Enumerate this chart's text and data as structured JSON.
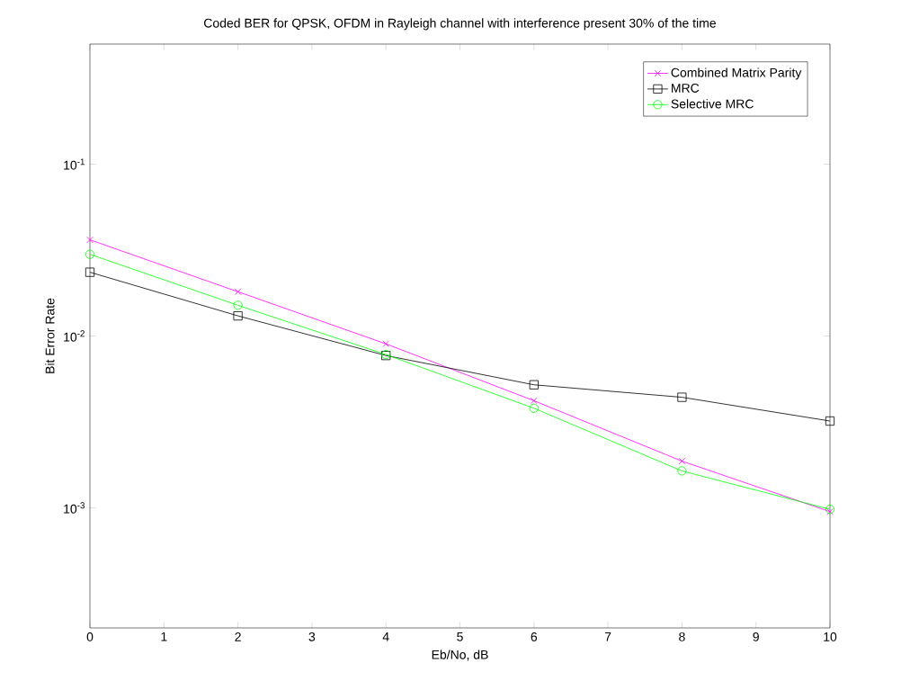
{
  "chart_data": {
    "type": "line",
    "title": "Coded BER for QPSK, OFDM in Rayleigh channel with interference present 30% of the time",
    "xlabel": "Eb/No, dB",
    "ylabel": "Bit Error Rate",
    "x": [
      0,
      2,
      4,
      6,
      8,
      10
    ],
    "series": [
      {
        "name": "Combined Matrix Parity",
        "color": "#ff00ff",
        "marker": "cross",
        "values": [
          0.0363,
          0.0181,
          0.009,
          0.0042,
          0.00187,
          0.00095
        ]
      },
      {
        "name": "MRC",
        "color": "#000000",
        "marker": "square",
        "values": [
          0.0235,
          0.0131,
          0.0077,
          0.0052,
          0.0044,
          0.0032
        ]
      },
      {
        "name": "Selective MRC",
        "color": "#00ff00",
        "marker": "circle",
        "values": [
          0.0299,
          0.0151,
          0.0078,
          0.0038,
          0.00164,
          0.00098
        ]
      }
    ],
    "log": "y",
    "xlim": [
      0,
      10
    ],
    "ylim": [
      0.0002,
      0.5
    ],
    "xticks": [
      0,
      1,
      2,
      3,
      4,
      5,
      6,
      7,
      8,
      9,
      10
    ],
    "yticks": [
      {
        "value": 0.1,
        "label": "10$^{-1}$"
      },
      {
        "value": 0.01,
        "label": "10$^{-2}$"
      },
      {
        "value": 0.001,
        "label": "10$^{-3}$"
      }
    ],
    "grid": false,
    "legend": "top right"
  }
}
